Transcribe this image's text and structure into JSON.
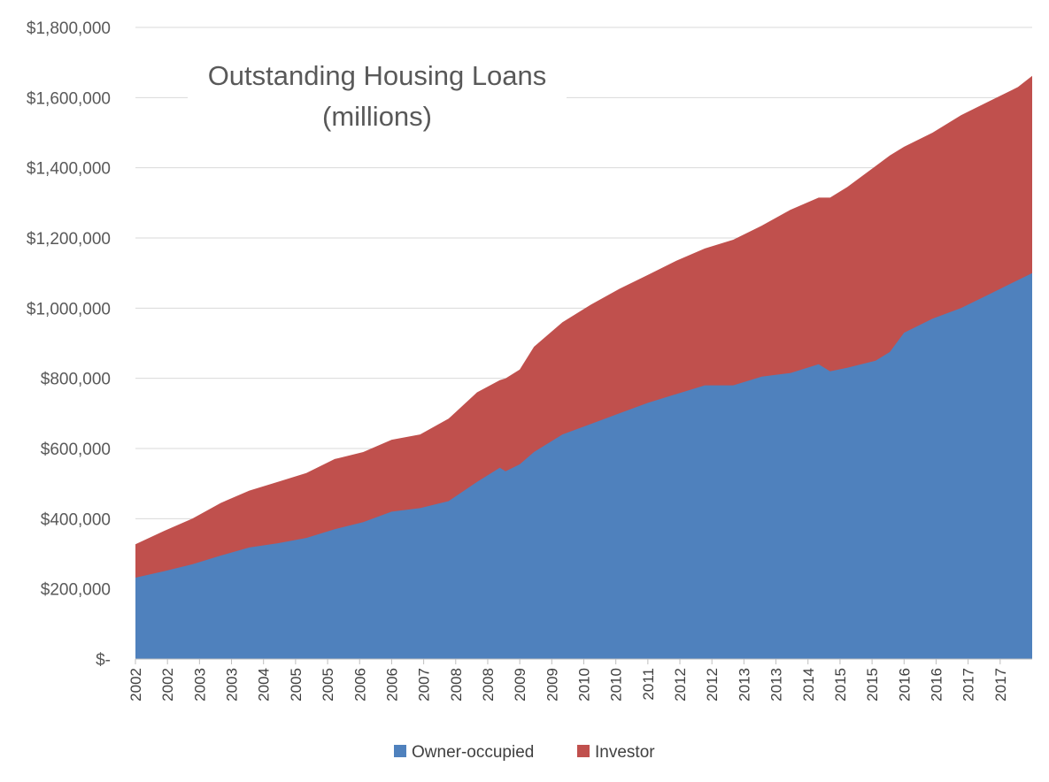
{
  "chart_data": {
    "type": "area",
    "stacked": true,
    "title": "Outstanding Housing Loans",
    "subtitle": "(millions)",
    "xlabel": "",
    "ylabel": "",
    "ylim": [
      0,
      1800000
    ],
    "y_ticks": [
      0,
      200000,
      400000,
      600000,
      800000,
      1000000,
      1200000,
      1400000,
      1600000,
      1800000
    ],
    "y_tick_labels": [
      "$-",
      "$200,000",
      "$400,000",
      "$600,000",
      "$800,000",
      "$1,000,000",
      "$1,200,000",
      "$1,400,000",
      "$1,600,000",
      "$1,800,000"
    ],
    "x_tick_labels": [
      "2002",
      "2002",
      "2003",
      "2003",
      "2004",
      "2005",
      "2005",
      "2006",
      "2006",
      "2007",
      "2008",
      "2008",
      "2009",
      "2009",
      "2010",
      "2010",
      "2011",
      "2012",
      "2012",
      "2013",
      "2013",
      "2014",
      "2015",
      "2015",
      "2016",
      "2016",
      "2017",
      "2017"
    ],
    "grid": true,
    "legend_position": "bottom",
    "colors": {
      "owner_occupied": "#4f81bd",
      "investor": "#c0504d",
      "grid": "#d9d9d9",
      "axis": "#bfbfbf"
    },
    "x": [
      2002.0,
      2002.5,
      2003.0,
      2003.5,
      2004.0,
      2004.5,
      2005.0,
      2005.5,
      2006.0,
      2006.5,
      2007.0,
      2007.5,
      2008.0,
      2008.4,
      2008.5,
      2008.75,
      2009.0,
      2009.5,
      2010.0,
      2010.5,
      2011.0,
      2011.5,
      2012.0,
      2012.5,
      2013.0,
      2013.5,
      2014.0,
      2014.2,
      2014.5,
      2015.0,
      2015.25,
      2015.5,
      2016.0,
      2016.5,
      2017.0,
      2017.5,
      2017.75
    ],
    "series": [
      {
        "name": "Owner-occupied",
        "values": [
          232000,
          250000,
          270000,
          295000,
          318000,
          330000,
          345000,
          370000,
          390000,
          420000,
          430000,
          450000,
          505000,
          545000,
          535000,
          555000,
          590000,
          640000,
          670000,
          700000,
          730000,
          755000,
          780000,
          780000,
          805000,
          815000,
          840000,
          820000,
          830000,
          850000,
          875000,
          930000,
          970000,
          1000000,
          1040000,
          1080000,
          1100000
        ]
      },
      {
        "name": "Investor",
        "values": [
          95000,
          115000,
          130000,
          150000,
          162000,
          175000,
          185000,
          200000,
          200000,
          205000,
          210000,
          235000,
          255000,
          250000,
          265000,
          270000,
          300000,
          320000,
          340000,
          355000,
          365000,
          380000,
          390000,
          415000,
          430000,
          465000,
          475000,
          495000,
          515000,
          555000,
          560000,
          530000,
          530000,
          550000,
          550000,
          550000,
          562000
        ]
      }
    ]
  }
}
